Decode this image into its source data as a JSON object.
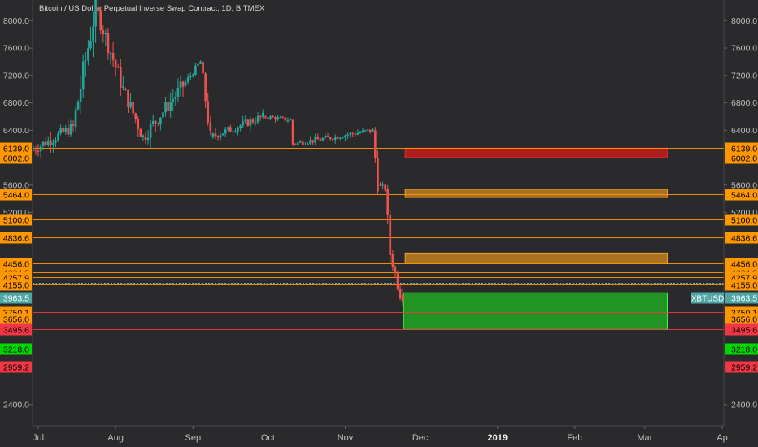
{
  "chart_data": {
    "type": "candlestick",
    "title": "Bitcoin / US Dollar Perpetual Inverse Swap Contract, 1D, BITMEX",
    "symbol_label": "XBTUSD",
    "xlabel": "",
    "ylabel": "",
    "x_ticks": [
      "Jul",
      "Aug",
      "Sep",
      "Oct",
      "Nov",
      "Dec",
      "2019",
      "Feb",
      "Mar",
      "Ap"
    ],
    "y_ticks": [
      "8000.0",
      "7600.0",
      "7200.0",
      "6800.0",
      "6400.0",
      "5600.0",
      "5200.0",
      "2400.0"
    ],
    "ylim": [
      2090,
      8300
    ],
    "last_price": {
      "value": 3963.5,
      "label": "3963.5"
    },
    "levels": [
      {
        "value": 6139.0,
        "label": "6139.0",
        "color": "#ff9800"
      },
      {
        "value": 6002.0,
        "label": "6002.0",
        "color": "#ff9800"
      },
      {
        "value": 5464.0,
        "label": "5464.0",
        "color": "#ff9800"
      },
      {
        "value": 5100.0,
        "label": "5100.0",
        "color": "#ff9800"
      },
      {
        "value": 4836.6,
        "label": "4836.6",
        "color": "#ff9800"
      },
      {
        "value": 4456.0,
        "label": "4456.0",
        "color": "#ff9800"
      },
      {
        "value": 4334.9,
        "label": "4334.9",
        "color": "#ff9800"
      },
      {
        "value": 4257.9,
        "label": "4257.9",
        "color": "#ff9800"
      },
      {
        "value": 4155.0,
        "label": "4155.0",
        "color": "#ff9800"
      },
      {
        "value": 3750.1,
        "label": "3750.1",
        "color": "#f23645"
      },
      {
        "value": 3656.0,
        "label": "3656.0",
        "color": "#2bd42b"
      },
      {
        "value": 3495.6,
        "label": "3495.6",
        "color": "#f23645"
      },
      {
        "value": 3218.0,
        "label": "3218.0",
        "color": "#00e600"
      },
      {
        "value": 2959.2,
        "label": "2959.2",
        "color": "#f23645"
      }
    ],
    "zones": [
      {
        "from": 6139,
        "to": 6002,
        "color": "#c41c1c"
      },
      {
        "from": 5540,
        "to": 5420,
        "color": "#d68a1e"
      },
      {
        "from": 4610,
        "to": 4460,
        "color": "#d68a1e"
      },
      {
        "from": 4030,
        "to": 3495.6,
        "color": "#20b820"
      }
    ],
    "trend_segments": [
      {
        "from": "2018-06-29",
        "to": "2018-07-16",
        "open": 6100,
        "close": 6450,
        "low": 5950,
        "high": 6900
      },
      {
        "from": "2018-07-16",
        "to": "2018-07-25",
        "open": 6450,
        "close": 8200,
        "low": 6300,
        "high": 8500
      },
      {
        "from": "2018-07-25",
        "to": "2018-08-05",
        "open": 8200,
        "close": 7000,
        "low": 6900,
        "high": 8300
      },
      {
        "from": "2018-08-05",
        "to": "2018-08-13",
        "open": 7000,
        "close": 6300,
        "low": 5900,
        "high": 7100
      },
      {
        "from": "2018-08-13",
        "to": "2018-08-29",
        "open": 6300,
        "close": 7050,
        "low": 6000,
        "high": 7200
      },
      {
        "from": "2018-08-29",
        "to": "2018-09-05",
        "open": 7050,
        "close": 7400,
        "low": 6950,
        "high": 7450
      },
      {
        "from": "2018-09-05",
        "to": "2018-09-09",
        "open": 7400,
        "close": 6300,
        "low": 6200,
        "high": 7450
      },
      {
        "from": "2018-09-09",
        "to": "2018-09-30",
        "open": 6300,
        "close": 6600,
        "low": 6150,
        "high": 6800
      },
      {
        "from": "2018-09-30",
        "to": "2018-10-11",
        "open": 6600,
        "close": 6550,
        "low": 6400,
        "high": 6750
      },
      {
        "from": "2018-10-11",
        "to": "2018-10-12",
        "open": 6550,
        "close": 6200,
        "low": 6050,
        "high": 6560
      },
      {
        "from": "2018-10-12",
        "to": "2018-11-13",
        "open": 6200,
        "close": 6400,
        "low": 6180,
        "high": 6650
      },
      {
        "from": "2018-11-13",
        "to": "2018-11-15",
        "open": 6400,
        "close": 5600,
        "low": 5400,
        "high": 6450
      },
      {
        "from": "2018-11-15",
        "to": "2018-11-18",
        "open": 5600,
        "close": 5550,
        "low": 5200,
        "high": 5650
      },
      {
        "from": "2018-11-18",
        "to": "2018-11-20",
        "open": 5550,
        "close": 4600,
        "low": 4300,
        "high": 5600
      },
      {
        "from": "2018-11-20",
        "to": "2018-11-24",
        "open": 4600,
        "close": 4000,
        "low": 3900,
        "high": 4650
      },
      {
        "from": "2018-11-24",
        "to": "2018-11-25",
        "open": 4000,
        "close": 3963.5,
        "low": 3530,
        "high": 4250
      }
    ],
    "annotations": [
      {
        "text": "4257.9",
        "color": "#5fb6b5"
      }
    ]
  }
}
